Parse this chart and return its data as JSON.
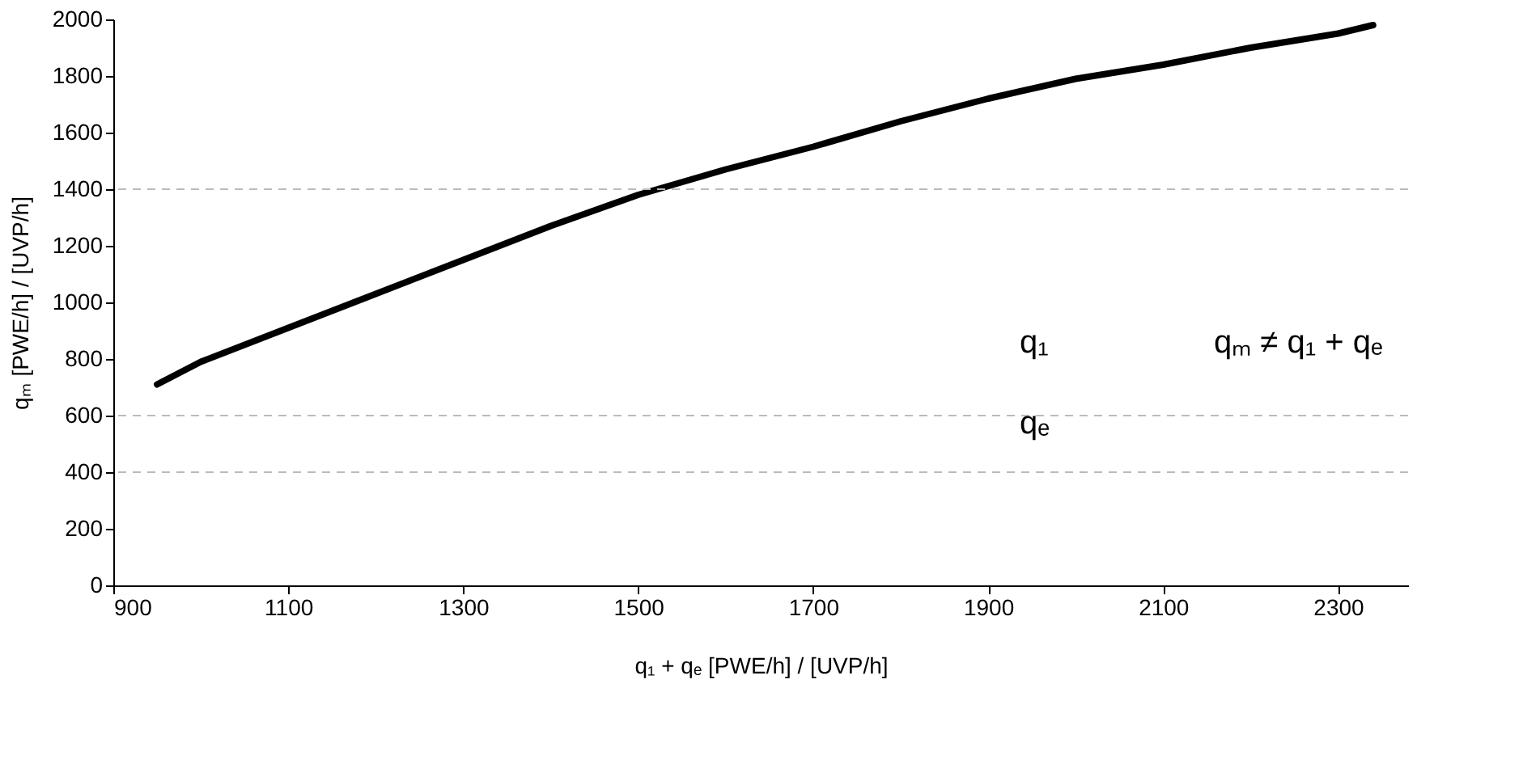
{
  "chart_data": {
    "type": "line",
    "xlabel": "q₁ + qₑ [PWE/h] / [UVP/h]",
    "ylabel": "qₘ [PWE/h] / [UVP/h]",
    "x": [
      950,
      1000,
      1100,
      1200,
      1300,
      1400,
      1500,
      1600,
      1700,
      1800,
      1900,
      2000,
      2100,
      2200,
      2300,
      2340
    ],
    "series": [
      {
        "color": "#000000",
        "values": [
          710,
          790,
          910,
          1030,
          1150,
          1270,
          1380,
          1470,
          1550,
          1640,
          1720,
          1790,
          1840,
          1900,
          1950,
          1980
        ]
      }
    ],
    "xlim": [
      900,
      2380
    ],
    "xticks": [
      900,
      1100,
      1300,
      1500,
      1700,
      1900,
      2100,
      2300
    ],
    "ylim": [
      0,
      2000
    ],
    "yticks": [
      0,
      200,
      400,
      600,
      800,
      1000,
      1200,
      1400,
      1600,
      1800,
      2000
    ],
    "grid": false,
    "marker": "none",
    "line_style": "solid",
    "ref_lines": [
      {
        "axis": "y",
        "value": 400,
        "color": "#bbbbbb",
        "line_style": "dashed"
      },
      {
        "axis": "y",
        "value": 600,
        "color": "#bbbbbb",
        "line_style": "dashed"
      },
      {
        "axis": "y",
        "value": 1400,
        "color": "#bbbbbb",
        "line_style": "dashed"
      }
    ],
    "annotations": [
      "q₁",
      "qₑ",
      "qₘ ≠ q₁ + qₑ"
    ]
  }
}
